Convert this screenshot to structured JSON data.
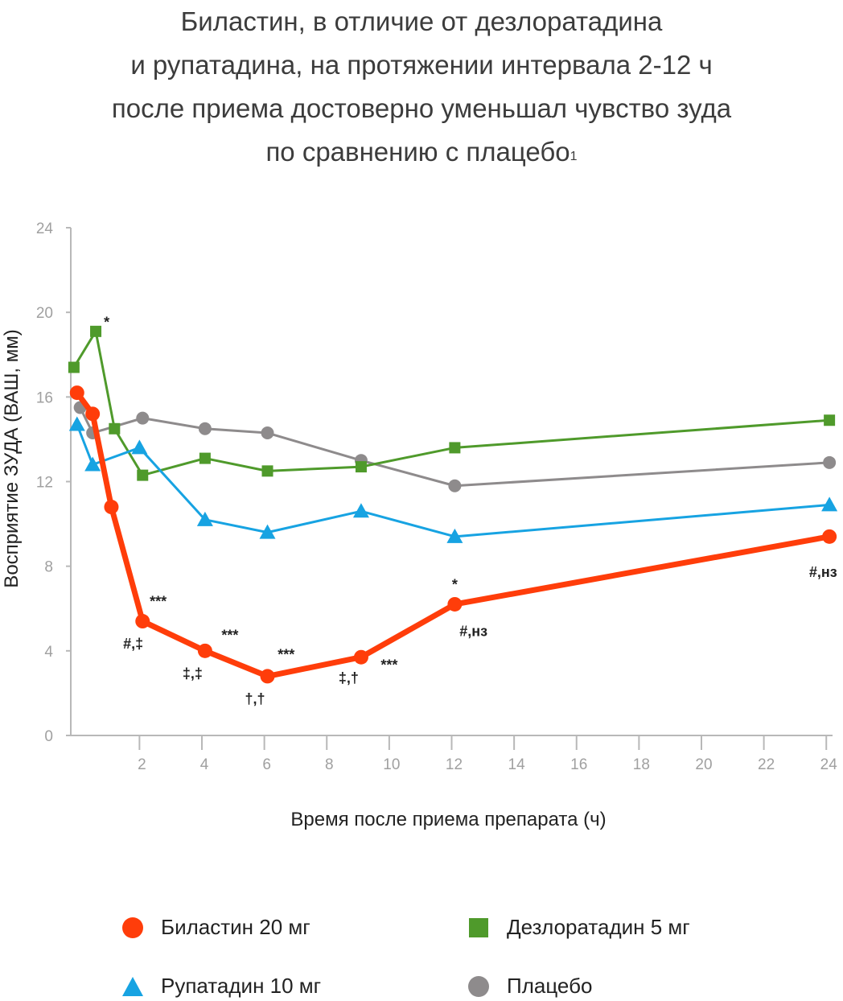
{
  "title": {
    "lines": [
      "Биластин, в отличие от дезлоратадина",
      "и рупатадина, на протяжении интервала 2-12 ч",
      "после приема достоверно уменьшал чувство зуда",
      "по сравнению с плацебо"
    ],
    "footnote": "1"
  },
  "chart_data": {
    "type": "line",
    "xlabel": "Время после приема препарата (ч)",
    "ylabel": "Восприятие ЗУДА (ВАШ, мм)",
    "xlim": [
      -0.2,
      24.2
    ],
    "ylim": [
      0,
      24
    ],
    "xticks": [
      2,
      4,
      6,
      8,
      10,
      12,
      14,
      16,
      18,
      20,
      22,
      24
    ],
    "yticks": [
      0,
      4,
      8,
      12,
      16,
      20,
      24
    ],
    "grid": false,
    "legend_placement": "bottom",
    "series": [
      {
        "name": "Плацебо",
        "color": "#8e8b8c",
        "marker": "circle",
        "points": [
          [
            0.1,
            15.5
          ],
          [
            0.5,
            14.3
          ],
          [
            2.1,
            15.0
          ],
          [
            4.1,
            14.5
          ],
          [
            6.1,
            14.3
          ],
          [
            9.1,
            13.0
          ],
          [
            12.1,
            11.8
          ],
          [
            24.1,
            12.9
          ]
        ]
      },
      {
        "name": "Дезлоратадин 5 мг",
        "color": "#4f9a2b",
        "marker": "square",
        "points": [
          [
            -0.1,
            17.4
          ],
          [
            0.6,
            19.1
          ],
          [
            1.2,
            14.5
          ],
          [
            2.1,
            12.3
          ],
          [
            4.1,
            13.1
          ],
          [
            6.1,
            12.5
          ],
          [
            9.1,
            12.7
          ],
          [
            12.1,
            13.6
          ],
          [
            24.1,
            14.9
          ]
        ]
      },
      {
        "name": "Рупатадин 10 мг",
        "color": "#17a3e2",
        "marker": "triangle",
        "points": [
          [
            0.0,
            14.7
          ],
          [
            0.5,
            12.8
          ],
          [
            2.0,
            13.6
          ],
          [
            4.1,
            10.2
          ],
          [
            6.1,
            9.6
          ],
          [
            9.1,
            10.6
          ],
          [
            12.1,
            9.4
          ],
          [
            24.1,
            10.9
          ]
        ]
      },
      {
        "name": "Биластин 20 мг",
        "color": "#ff3d0a",
        "marker": "circle",
        "points": [
          [
            0.0,
            16.2
          ],
          [
            0.5,
            15.2
          ],
          [
            1.1,
            10.8
          ],
          [
            2.1,
            5.4
          ],
          [
            4.1,
            4.0
          ],
          [
            6.1,
            2.8
          ],
          [
            9.1,
            3.7
          ],
          [
            12.1,
            6.2
          ],
          [
            24.1,
            9.4
          ]
        ]
      }
    ],
    "annotations": [
      {
        "text": "*",
        "x": 0.95,
        "y": 19.3
      },
      {
        "text": "***",
        "x": 2.6,
        "y": 6.1
      },
      {
        "text": "#,‡",
        "x": 1.8,
        "y": 4.1
      },
      {
        "text": "***",
        "x": 4.9,
        "y": 4.5
      },
      {
        "text": "‡,‡",
        "x": 3.7,
        "y": 2.7
      },
      {
        "text": "***",
        "x": 6.7,
        "y": 3.6
      },
      {
        "text": "†,†",
        "x": 5.7,
        "y": 1.5
      },
      {
        "text": "‡,†",
        "x": 8.7,
        "y": 2.5
      },
      {
        "text": "***",
        "x": 10.0,
        "y": 3.1
      },
      {
        "text": "*",
        "x": 12.1,
        "y": 6.9
      },
      {
        "text": "#,нз",
        "x": 12.7,
        "y": 4.7
      },
      {
        "text": "#,нз",
        "x": 23.9,
        "y": 7.5
      }
    ]
  },
  "legend": {
    "items": [
      {
        "label": "Биластин 20 мг",
        "color": "#ff3d0a",
        "marker": "circle"
      },
      {
        "label": "Дезлоратадин 5 мг",
        "color": "#4f9a2b",
        "marker": "square"
      },
      {
        "label": "Рупатадин 10 мг",
        "color": "#17a3e2",
        "marker": "triangle"
      },
      {
        "label": "Плацебо",
        "color": "#8e8b8c",
        "marker": "circle"
      }
    ]
  }
}
